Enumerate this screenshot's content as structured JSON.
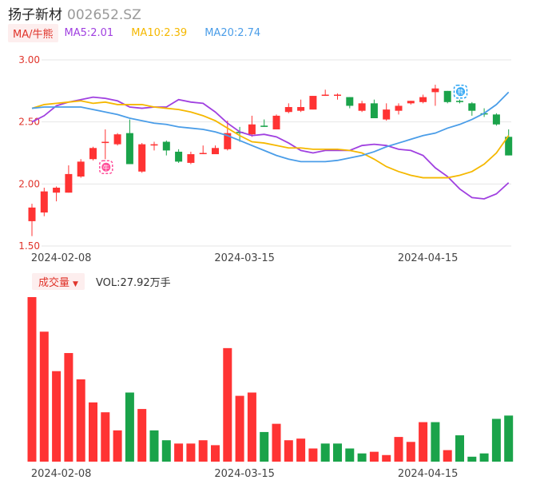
{
  "header": {
    "name": "扬子新材",
    "code": "002652.SZ"
  },
  "ma_legend": {
    "tag": "MA/牛熊",
    "items": [
      {
        "label": "MA5:2.01",
        "color": "#a040e0"
      },
      {
        "label": "MA10:2.39",
        "color": "#f5b800"
      },
      {
        "label": "MA20:2.74",
        "color": "#4a9de8"
      }
    ]
  },
  "volume_legend": {
    "tag": "成交量",
    "text": "VOL:27.92万手"
  },
  "colors": {
    "up": "#ff3333",
    "down": "#1aa34a",
    "grid": "#e6e6e6"
  },
  "chart_data": {
    "type": "candlestick",
    "y_ticks": [
      "3.00",
      "2.50",
      "2.00",
      "1.50"
    ],
    "ylim": [
      1.5,
      3.0
    ],
    "x_tick_labels": [
      {
        "label": "2024-02-08",
        "index": 2
      },
      {
        "label": "2024-03-15",
        "index": 17
      },
      {
        "label": "2024-04-15",
        "index": 32
      }
    ],
    "candles": [
      {
        "o": 1.7,
        "h": 1.84,
        "l": 1.58,
        "c": 1.81
      },
      {
        "o": 1.77,
        "h": 1.97,
        "l": 1.74,
        "c": 1.94
      },
      {
        "o": 1.93,
        "h": 1.98,
        "l": 1.86,
        "c": 1.97
      },
      {
        "o": 1.93,
        "h": 2.15,
        "l": 1.93,
        "c": 2.08
      },
      {
        "o": 2.06,
        "h": 2.2,
        "l": 2.05,
        "c": 2.18
      },
      {
        "o": 2.2,
        "h": 2.3,
        "l": 2.19,
        "c": 2.29
      },
      {
        "o": 2.33,
        "h": 2.44,
        "l": 2.2,
        "c": 2.34
      },
      {
        "o": 2.32,
        "h": 2.41,
        "l": 2.31,
        "c": 2.4
      },
      {
        "o": 2.41,
        "h": 2.52,
        "l": 2.16,
        "c": 2.16
      },
      {
        "o": 2.1,
        "h": 2.33,
        "l": 2.09,
        "c": 2.32
      },
      {
        "o": 2.31,
        "h": 2.34,
        "l": 2.27,
        "c": 2.32
      },
      {
        "o": 2.34,
        "h": 2.35,
        "l": 2.23,
        "c": 2.27
      },
      {
        "o": 2.26,
        "h": 2.28,
        "l": 2.17,
        "c": 2.18
      },
      {
        "o": 2.17,
        "h": 2.26,
        "l": 2.16,
        "c": 2.24
      },
      {
        "o": 2.25,
        "h": 2.31,
        "l": 2.24,
        "c": 2.25
      },
      {
        "o": 2.24,
        "h": 2.31,
        "l": 2.24,
        "c": 2.29
      },
      {
        "o": 2.28,
        "h": 2.51,
        "l": 2.27,
        "c": 2.41
      },
      {
        "o": 2.42,
        "h": 2.46,
        "l": 2.34,
        "c": 2.41
      },
      {
        "o": 2.4,
        "h": 2.55,
        "l": 2.38,
        "c": 2.48
      },
      {
        "o": 2.47,
        "h": 2.52,
        "l": 2.46,
        "c": 2.46
      },
      {
        "o": 2.44,
        "h": 2.56,
        "l": 2.44,
        "c": 2.55
      },
      {
        "o": 2.58,
        "h": 2.65,
        "l": 2.57,
        "c": 2.62
      },
      {
        "o": 2.59,
        "h": 2.68,
        "l": 2.58,
        "c": 2.62
      },
      {
        "o": 2.6,
        "h": 2.71,
        "l": 2.6,
        "c": 2.71
      },
      {
        "o": 2.71,
        "h": 2.76,
        "l": 2.71,
        "c": 2.72
      },
      {
        "o": 2.72,
        "h": 2.73,
        "l": 2.68,
        "c": 2.72
      },
      {
        "o": 2.7,
        "h": 2.7,
        "l": 2.61,
        "c": 2.63
      },
      {
        "o": 2.59,
        "h": 2.67,
        "l": 2.58,
        "c": 2.65
      },
      {
        "o": 2.65,
        "h": 2.68,
        "l": 2.53,
        "c": 2.53
      },
      {
        "o": 2.52,
        "h": 2.65,
        "l": 2.51,
        "c": 2.6
      },
      {
        "o": 2.59,
        "h": 2.65,
        "l": 2.56,
        "c": 2.63
      },
      {
        "o": 2.65,
        "h": 2.67,
        "l": 2.64,
        "c": 2.67
      },
      {
        "o": 2.66,
        "h": 2.72,
        "l": 2.65,
        "c": 2.7
      },
      {
        "o": 2.74,
        "h": 2.8,
        "l": 2.63,
        "c": 2.77
      },
      {
        "o": 2.75,
        "h": 2.75,
        "l": 2.65,
        "c": 2.66
      },
      {
        "o": 2.67,
        "h": 2.68,
        "l": 2.65,
        "c": 2.66
      },
      {
        "o": 2.65,
        "h": 2.66,
        "l": 2.55,
        "c": 2.59
      },
      {
        "o": 2.57,
        "h": 2.61,
        "l": 2.54,
        "c": 2.56
      },
      {
        "o": 2.56,
        "h": 2.57,
        "l": 2.47,
        "c": 2.48
      },
      {
        "o": 2.38,
        "h": 2.44,
        "l": 2.23,
        "c": 2.23
      }
    ],
    "ma5": [
      2.5,
      2.55,
      2.63,
      2.66,
      2.68,
      2.7,
      2.69,
      2.67,
      2.62,
      2.61,
      2.62,
      2.62,
      2.68,
      2.66,
      2.65,
      2.58,
      2.49,
      2.42,
      2.39,
      2.4,
      2.38,
      2.33,
      2.27,
      2.25,
      2.27,
      2.27,
      2.27,
      2.31,
      2.32,
      2.31,
      2.28,
      2.27,
      2.23,
      2.13,
      2.06,
      1.96,
      1.89,
      1.88,
      1.92,
      2.01
    ],
    "ma10": [
      2.61,
      2.64,
      2.65,
      2.66,
      2.67,
      2.65,
      2.66,
      2.64,
      2.64,
      2.64,
      2.62,
      2.61,
      2.6,
      2.58,
      2.55,
      2.51,
      2.45,
      2.39,
      2.34,
      2.33,
      2.31,
      2.29,
      2.29,
      2.28,
      2.28,
      2.28,
      2.27,
      2.25,
      2.2,
      2.14,
      2.1,
      2.07,
      2.05,
      2.05,
      2.05,
      2.07,
      2.1,
      2.16,
      2.25,
      2.39
    ],
    "ma20": [
      2.61,
      2.62,
      2.62,
      2.62,
      2.62,
      2.6,
      2.58,
      2.56,
      2.53,
      2.51,
      2.49,
      2.48,
      2.46,
      2.45,
      2.44,
      2.42,
      2.39,
      2.35,
      2.31,
      2.27,
      2.23,
      2.2,
      2.18,
      2.18,
      2.18,
      2.19,
      2.21,
      2.23,
      2.26,
      2.3,
      2.33,
      2.36,
      2.39,
      2.41,
      2.45,
      2.48,
      2.52,
      2.57,
      2.64,
      2.74
    ],
    "volumes": [
      100,
      79,
      55,
      66,
      50,
      36,
      30,
      19,
      42,
      32,
      19,
      13,
      11,
      11,
      13,
      10,
      69,
      40,
      42,
      18,
      23,
      13,
      14,
      8,
      11,
      11,
      8,
      5,
      6,
      4,
      15,
      12,
      24,
      24,
      7,
      16,
      3,
      5,
      26,
      28
    ],
    "volume_colors": [
      "up",
      "up",
      "up",
      "up",
      "up",
      "up",
      "up",
      "up",
      "down",
      "up",
      "down",
      "down",
      "up",
      "up",
      "up",
      "up",
      "up",
      "up",
      "up",
      "down",
      "up",
      "up",
      "up",
      "up",
      "down",
      "down",
      "down",
      "down",
      "up",
      "up",
      "up",
      "up",
      "up",
      "down",
      "up",
      "down",
      "down",
      "down",
      "down",
      "down"
    ],
    "markers": [
      {
        "index": 6,
        "label": "牛",
        "kind": "bull"
      },
      {
        "index": 35,
        "label": "熊",
        "kind": "bear"
      }
    ]
  }
}
